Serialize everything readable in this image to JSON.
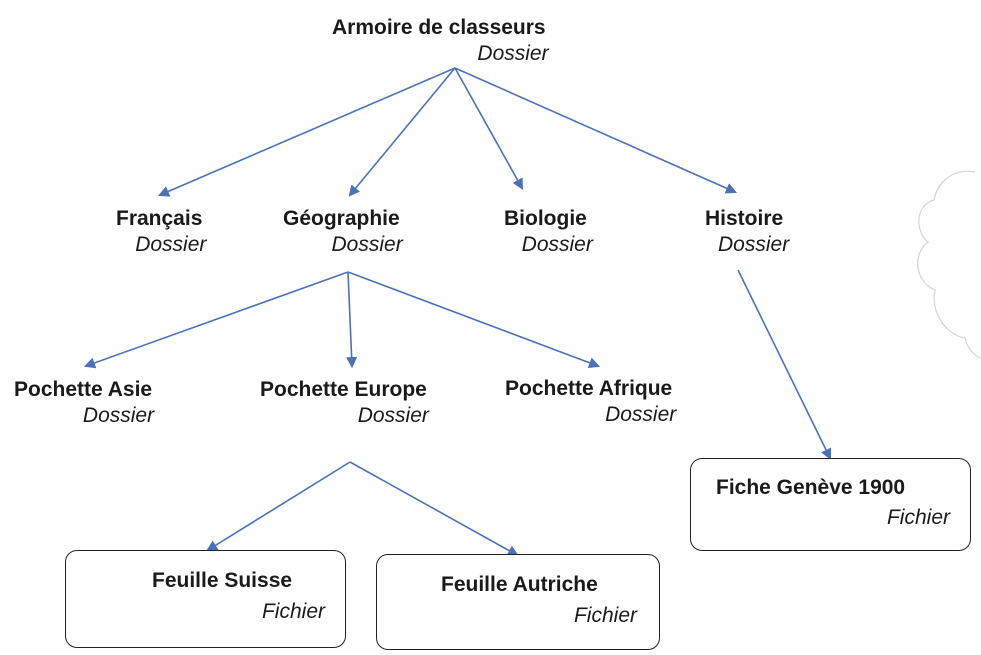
{
  "nodes": {
    "root": {
      "name": "Armoire de classeurs",
      "type": "Dossier"
    },
    "francais": {
      "name": "Français",
      "type": "Dossier"
    },
    "geographie": {
      "name": "Géographie",
      "type": "Dossier"
    },
    "biologie": {
      "name": "Biologie",
      "type": "Dossier"
    },
    "histoire": {
      "name": "Histoire",
      "type": "Dossier"
    },
    "asie": {
      "name": "Pochette Asie",
      "type": "Dossier"
    },
    "europe": {
      "name": "Pochette Europe",
      "type": "Dossier"
    },
    "afrique": {
      "name": "Pochette Afrique",
      "type": "Dossier"
    },
    "geneve": {
      "name": "Fiche Genève 1900",
      "type": "Fichier"
    },
    "suisse": {
      "name": "Feuille Suisse",
      "type": "Fichier"
    },
    "autriche": {
      "name": "Feuille Autriche",
      "type": "Fichier"
    }
  },
  "colors": {
    "arrow": "#4a72b8",
    "text": "#1a1a1a",
    "box_border": "#222222"
  }
}
